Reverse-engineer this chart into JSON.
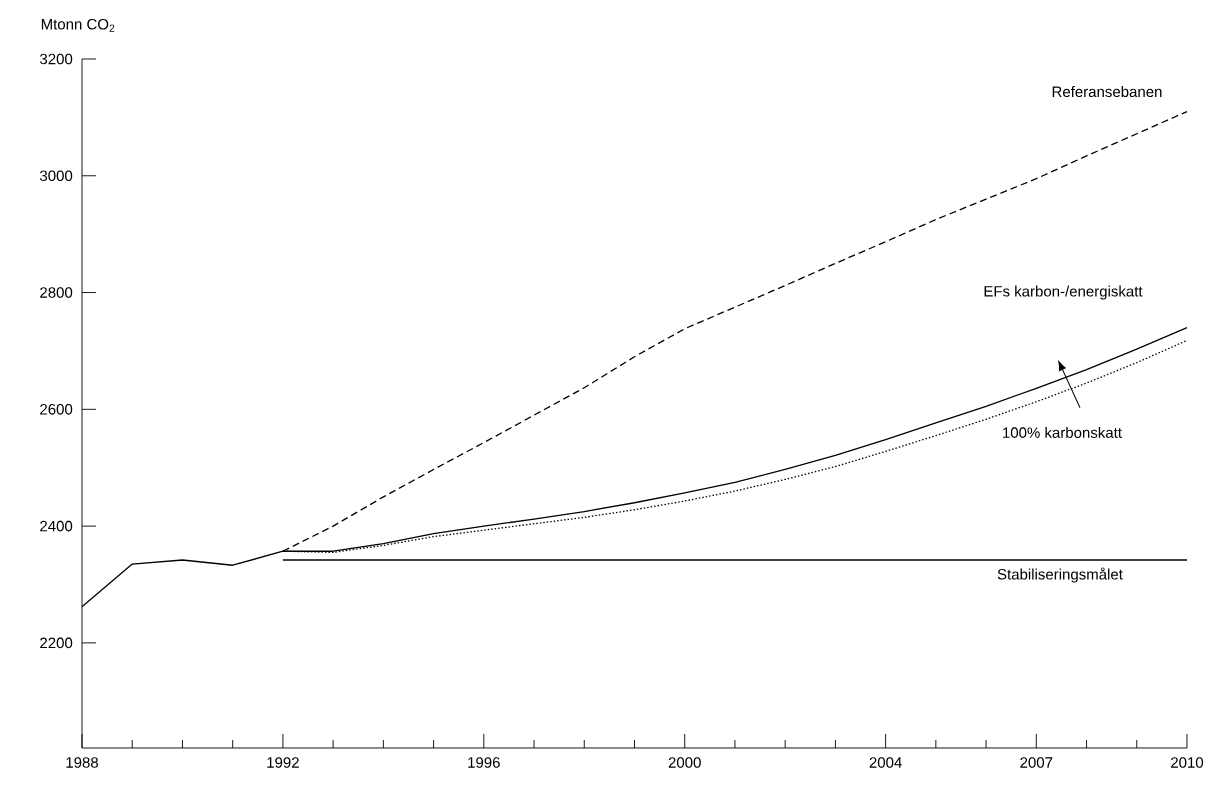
{
  "chart_data": {
    "type": "line",
    "ylabel": "Mtonn CO$_{2}$",
    "xlim": [
      1988,
      2010
    ],
    "ylim": [
      2020,
      3200
    ],
    "xticks": [
      1988,
      {
        "value": 1989,
        "label": null
      },
      {
        "value": 1990,
        "label": null
      },
      {
        "value": 1991,
        "label": null
      },
      1992,
      {
        "value": 1993,
        "label": null
      },
      {
        "value": 1994,
        "label": null
      },
      {
        "value": 1995,
        "label": null
      },
      1996,
      {
        "value": 1997,
        "label": null
      },
      {
        "value": 1998,
        "label": null
      },
      {
        "value": 1999,
        "label": null
      },
      2000,
      {
        "value": 2001,
        "label": null
      },
      {
        "value": 2002,
        "label": null
      },
      {
        "value": 2003,
        "label": null
      },
      2004,
      {
        "value": 2005,
        "label": null
      },
      {
        "value": 2006,
        "label": null
      },
      2007,
      {
        "value": 2008,
        "label": null
      },
      {
        "value": 2009,
        "label": null
      },
      2010
    ],
    "yticks": [
      2200,
      2400,
      2600,
      2800,
      3000,
      3200
    ],
    "marker": "none",
    "series": [
      {
        "name": "Referansebanen",
        "color": "#000000",
        "line_style": "dashed",
        "x": [
          1992,
          1993,
          1994,
          1995,
          1996,
          1997,
          1998,
          1999,
          2000,
          2001,
          2002,
          2003,
          2004,
          2005,
          2006,
          2007,
          2008,
          2009,
          2010
        ],
        "values": [
          2357,
          2400,
          2450,
          2497,
          2543,
          2590,
          2637,
          2690,
          2738,
          2775,
          2812,
          2850,
          2887,
          2925,
          2960,
          2995,
          3034,
          3072,
          3110
        ]
      },
      {
        "name": "EFs karbon-/energiskatt",
        "color": "#000000",
        "line_style": "solid",
        "x": [
          1988,
          1989,
          1990,
          1991,
          1992,
          1993,
          1994,
          1995,
          1996,
          1997,
          1998,
          1999,
          2000,
          2001,
          2002,
          2003,
          2004,
          2005,
          2006,
          2007,
          2008,
          2009,
          2010
        ],
        "values": [
          2262,
          2335,
          2342,
          2333,
          2357,
          2357,
          2370,
          2387,
          2400,
          2412,
          2425,
          2440,
          2457,
          2475,
          2497,
          2521,
          2548,
          2577,
          2605,
          2636,
          2668,
          2703,
          2740
        ]
      },
      {
        "name": "100% karbonskatt",
        "color": "#000000",
        "line_style": "dotted",
        "x": [
          1992,
          1993,
          1994,
          1995,
          1996,
          1997,
          1998,
          1999,
          2000,
          2001,
          2002,
          2003,
          2004,
          2005,
          2006,
          2007,
          2008,
          2009,
          2010
        ],
        "values": [
          2357,
          2355,
          2367,
          2382,
          2393,
          2404,
          2415,
          2428,
          2443,
          2460,
          2480,
          2502,
          2528,
          2555,
          2583,
          2613,
          2645,
          2680,
          2718
        ]
      },
      {
        "name": "Stabiliseringsmålet",
        "color": "#000000",
        "line_style": "solid",
        "x": [
          1992,
          2010
        ],
        "values": [
          2342,
          2342
        ]
      }
    ]
  }
}
